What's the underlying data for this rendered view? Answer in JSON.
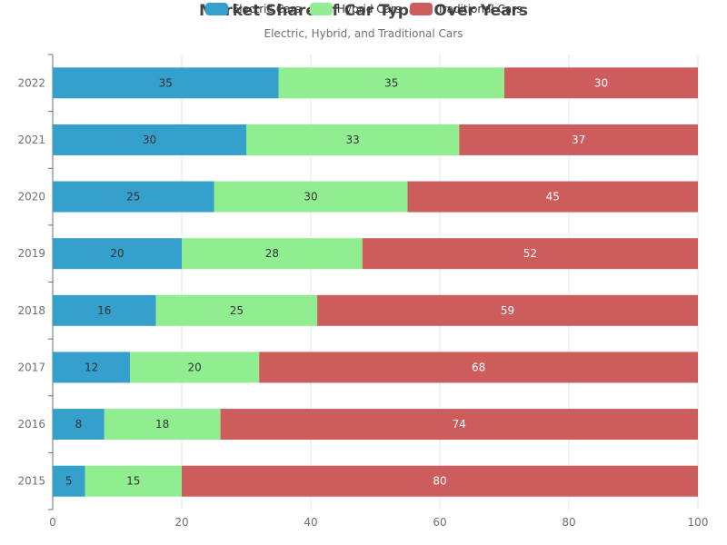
{
  "chart_data": {
    "type": "bar",
    "orientation": "horizontal",
    "stacked": true,
    "title": "Market Share of Car Types Over Years",
    "subtitle": "Electric, Hybrid, and Traditional Cars",
    "categories": [
      "2015",
      "2016",
      "2017",
      "2018",
      "2019",
      "2020",
      "2021",
      "2022"
    ],
    "series": [
      {
        "name": "Electric Cars",
        "color": "#35a0cc",
        "label_color": "#333333",
        "values": [
          5,
          8,
          12,
          16,
          20,
          25,
          30,
          35
        ]
      },
      {
        "name": "Hybrid Cars",
        "color": "#90ee90",
        "label_color": "#333333",
        "values": [
          15,
          18,
          20,
          25,
          28,
          30,
          33,
          35
        ]
      },
      {
        "name": "Traditional Cars",
        "color": "#cd5c5c",
        "label_color": "#ffffff",
        "values": [
          80,
          74,
          68,
          59,
          52,
          45,
          37,
          30
        ]
      }
    ],
    "xlim": [
      0,
      100
    ],
    "xticks": [
      "0",
      "20",
      "40",
      "60",
      "80",
      "100"
    ],
    "xlabel": "",
    "ylabel": "",
    "grid": true,
    "legend_position": "top-center"
  }
}
